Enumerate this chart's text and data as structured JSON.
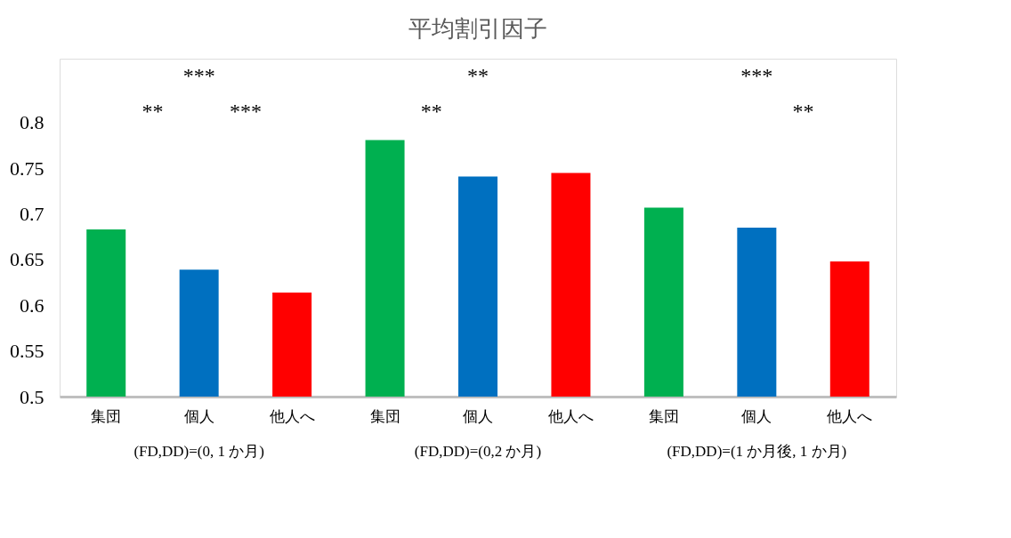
{
  "chart_data": {
    "type": "bar",
    "title": "平均割引因子",
    "categories": [
      "集団",
      "個人",
      "他人へ",
      "集団",
      "個人",
      "他人へ",
      "集団",
      "個人",
      "他人へ"
    ],
    "values": [
      0.683,
      0.639,
      0.614,
      0.781,
      0.741,
      0.745,
      0.707,
      0.685,
      0.648
    ],
    "colors": [
      "#00b050",
      "#0070c0",
      "#ff0000",
      "#00b050",
      "#0070c0",
      "#ff0000",
      "#00b050",
      "#0070c0",
      "#ff0000"
    ],
    "ylim": [
      0.5,
      0.87
    ],
    "yticks": [
      0.5,
      0.55,
      0.6,
      0.65,
      0.7,
      0.75,
      0.8
    ],
    "grid": false,
    "annotations": [
      "(FD,DD)=(0, 1 か月)",
      "(FD,DD)=(0,2 か月)",
      "(FD,DD)=(1 か月後, 1 か月)",
      "***",
      "**",
      "***",
      "**",
      "**",
      "***",
      "**"
    ]
  }
}
